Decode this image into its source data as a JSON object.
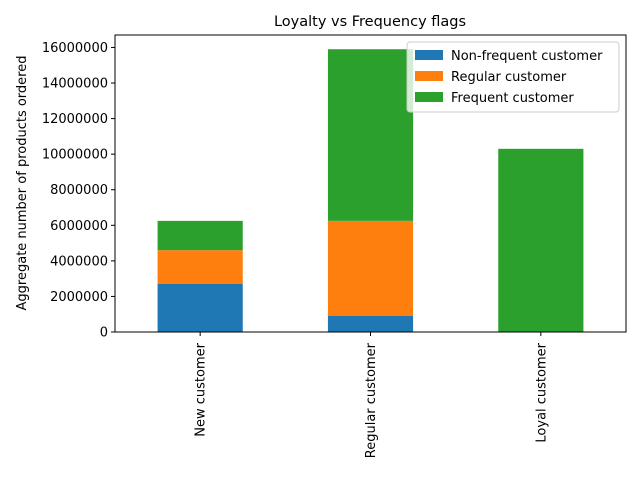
{
  "chart_data": {
    "type": "bar",
    "stacked": true,
    "title": "Loyalty vs Frequency flags",
    "xlabel": "",
    "ylabel": "Aggregate number of products ordered",
    "categories": [
      "New customer",
      "Regular customer",
      "Loyal customer"
    ],
    "series": [
      {
        "name": "Non-frequent customer",
        "color": "#1f77b4",
        "values": [
          2700000,
          900000,
          0
        ]
      },
      {
        "name": "Regular customer",
        "color": "#ff7f0e",
        "values": [
          1900000,
          5350000,
          0
        ]
      },
      {
        "name": "Frequent customer",
        "color": "#2ca02c",
        "values": [
          1650000,
          9650000,
          10300000
        ]
      }
    ],
    "ylim": [
      0,
      16700000
    ],
    "yticks": [
      0,
      2000000,
      4000000,
      6000000,
      8000000,
      10000000,
      12000000,
      14000000,
      16000000
    ],
    "ytick_labels": [
      "0",
      "2000000",
      "4000000",
      "6000000",
      "8000000",
      "10000000",
      "12000000",
      "14000000",
      "16000000"
    ],
    "grid": false,
    "legend_position": "top-right"
  }
}
